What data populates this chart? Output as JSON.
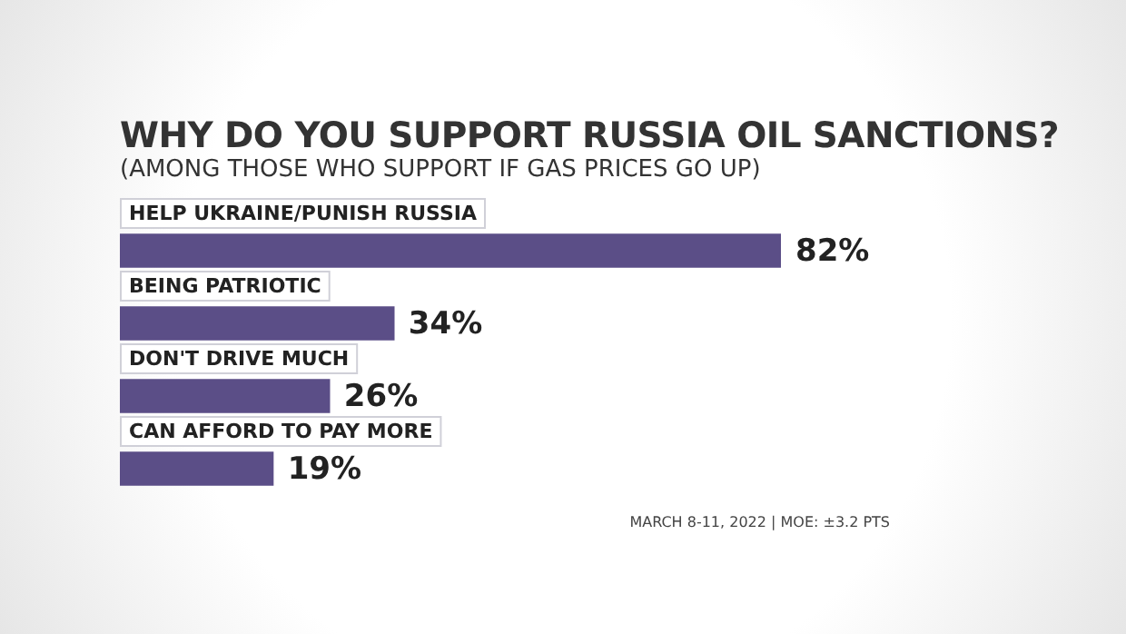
{
  "chart_data": {
    "type": "bar",
    "orientation": "horizontal",
    "title": "WHY DO YOU SUPPORT RUSSIA OIL SANCTIONS?",
    "subtitle": "(AMONG THOSE WHO SUPPORT IF GAS PRICES GO UP)",
    "categories": [
      "HELP UKRAINE/PUNISH RUSSIA",
      "BEING PATRIOTIC",
      "DON'T DRIVE MUCH",
      "CAN AFFORD TO PAY MORE"
    ],
    "values": [
      82,
      34,
      26,
      19
    ],
    "color": "#5b4e87",
    "value_labels": [
      "82%",
      "34%",
      "26%",
      "19%"
    ],
    "annotations": [
      "MARCH 8-11, 2022 | MOE: ±3.2 PTS"
    ]
  }
}
